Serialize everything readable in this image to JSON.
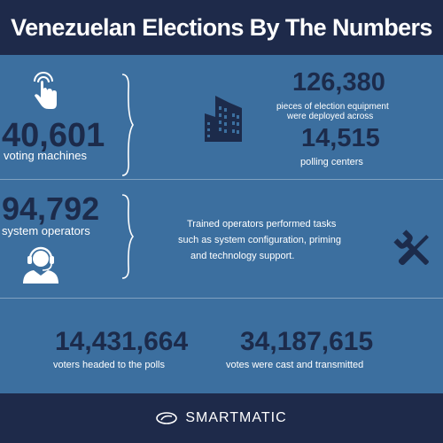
{
  "header": {
    "title": "Venezuelan Elections By The Numbers"
  },
  "machines": {
    "value": "40,601",
    "label": "voting machines"
  },
  "equipment": {
    "value": "126,380",
    "label_line1": "pieces of election equipment",
    "label_line2": "were deployed across",
    "centers_value": "14,515",
    "centers_label": "polling centers"
  },
  "operators": {
    "value": "94,792",
    "label": "system operators",
    "desc_line1": "Trained operators performed tasks",
    "desc_line2": "such as system configuration, priming",
    "desc_line3": "and technology support."
  },
  "voters": {
    "value": "14,431,664",
    "label": "voters headed to the polls"
  },
  "votes": {
    "value": "34,187,615",
    "label": "votes were cast and transmitted"
  },
  "footer": {
    "brand": "SMARTMATIC"
  },
  "colors": {
    "header_bg": "#1e2a4a",
    "panel_bg": "#3c6f9f",
    "number_color": "#1c2b4b",
    "text_color": "#ffffff"
  },
  "icons": {
    "tap": "hand-tap-icon",
    "building": "building-icon",
    "operator": "headset-operator-icon",
    "tools": "tools-icon",
    "logo": "smartmatic-logo-icon"
  }
}
